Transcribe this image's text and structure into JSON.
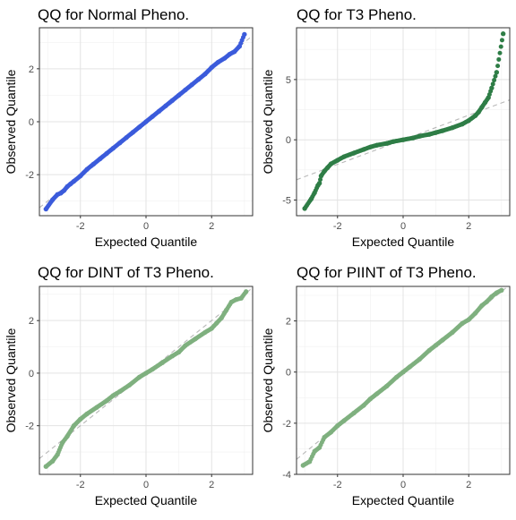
{
  "chart_data": [
    {
      "type": "scatter",
      "title": "QQ for Normal Pheno.",
      "xlabel": "Expected Quantile",
      "ylabel": "Observed Quantile",
      "color": "#3b5bdb",
      "xlim": [
        -3.25,
        3.25
      ],
      "ylim": [
        -3.55,
        3.55
      ],
      "xticks": [
        -2,
        0,
        2
      ],
      "yticks": [
        -2,
        0,
        2
      ],
      "reference_line": {
        "slope": 1.0,
        "intercept": 0.0
      },
      "points": [
        [
          -3.05,
          -3.3
        ],
        [
          -2.85,
          -2.95
        ],
        [
          -2.7,
          -2.75
        ],
        [
          -2.6,
          -2.7
        ],
        [
          -2.5,
          -2.6
        ],
        [
          -2.4,
          -2.45
        ],
        [
          -2.3,
          -2.35
        ],
        [
          -2.2,
          -2.25
        ],
        [
          -2.0,
          -2.05
        ],
        [
          -1.8,
          -1.8
        ],
        [
          -1.6,
          -1.6
        ],
        [
          -1.4,
          -1.4
        ],
        [
          -1.2,
          -1.2
        ],
        [
          -1.0,
          -1.0
        ],
        [
          -0.8,
          -0.8
        ],
        [
          -0.6,
          -0.6
        ],
        [
          -0.4,
          -0.4
        ],
        [
          -0.2,
          -0.2
        ],
        [
          0.0,
          0.0
        ],
        [
          0.2,
          0.2
        ],
        [
          0.4,
          0.4
        ],
        [
          0.6,
          0.6
        ],
        [
          0.8,
          0.8
        ],
        [
          1.0,
          1.0
        ],
        [
          1.2,
          1.2
        ],
        [
          1.4,
          1.4
        ],
        [
          1.6,
          1.6
        ],
        [
          1.8,
          1.8
        ],
        [
          2.0,
          2.05
        ],
        [
          2.2,
          2.25
        ],
        [
          2.4,
          2.4
        ],
        [
          2.55,
          2.55
        ],
        [
          2.7,
          2.65
        ],
        [
          2.85,
          2.85
        ],
        [
          3.0,
          3.3
        ]
      ]
    },
    {
      "type": "scatter",
      "title": "QQ for T3 Pheno.",
      "xlabel": "Expected Quantile",
      "ylabel": "Observed Quantile",
      "color": "#2e7d46",
      "xlim": [
        -3.25,
        3.25
      ],
      "ylim": [
        -6.3,
        9.3
      ],
      "xticks": [
        -2,
        0,
        2
      ],
      "yticks": [
        -5,
        0,
        5
      ],
      "reference_line": {
        "slope": 1.02,
        "intercept": 0.0
      },
      "points": [
        [
          -3.0,
          -5.7
        ],
        [
          -2.8,
          -4.9
        ],
        [
          -2.7,
          -4.4
        ],
        [
          -2.6,
          -3.8
        ],
        [
          -2.55,
          -3.6
        ],
        [
          -2.5,
          -3.0
        ],
        [
          -2.4,
          -2.6
        ],
        [
          -2.3,
          -2.3
        ],
        [
          -2.2,
          -2.0
        ],
        [
          -2.0,
          -1.7
        ],
        [
          -1.8,
          -1.4
        ],
        [
          -1.5,
          -1.1
        ],
        [
          -1.2,
          -0.8
        ],
        [
          -1.0,
          -0.6
        ],
        [
          -0.8,
          -0.45
        ],
        [
          -0.5,
          -0.3
        ],
        [
          -0.3,
          -0.15
        ],
        [
          0.0,
          0.0
        ],
        [
          0.3,
          0.15
        ],
        [
          0.5,
          0.3
        ],
        [
          0.8,
          0.45
        ],
        [
          1.0,
          0.6
        ],
        [
          1.2,
          0.75
        ],
        [
          1.5,
          1.0
        ],
        [
          1.8,
          1.3
        ],
        [
          2.0,
          1.6
        ],
        [
          2.2,
          2.0
        ],
        [
          2.3,
          2.3
        ],
        [
          2.4,
          2.7
        ],
        [
          2.5,
          3.1
        ],
        [
          2.6,
          3.5
        ],
        [
          2.7,
          4.3
        ],
        [
          2.85,
          5.6
        ],
        [
          3.05,
          8.8
        ]
      ]
    },
    {
      "type": "scatter",
      "title": "QQ for DINT of T3 Pheno.",
      "xlabel": "Expected Quantile",
      "ylabel": "Observed Quantile",
      "color": "#7fb07f",
      "xlim": [
        -3.25,
        3.25
      ],
      "ylim": [
        -3.85,
        3.3
      ],
      "xticks": [
        -2,
        0,
        2
      ],
      "yticks": [
        -2,
        0,
        2
      ],
      "reference_line": {
        "slope": 1.0,
        "intercept": 0.0
      },
      "points": [
        [
          -3.05,
          -3.55
        ],
        [
          -2.85,
          -3.35
        ],
        [
          -2.7,
          -3.1
        ],
        [
          -2.55,
          -2.65
        ],
        [
          -2.4,
          -2.4
        ],
        [
          -2.2,
          -2.0
        ],
        [
          -2.0,
          -1.75
        ],
        [
          -1.8,
          -1.55
        ],
        [
          -1.5,
          -1.3
        ],
        [
          -1.2,
          -1.05
        ],
        [
          -1.0,
          -0.85
        ],
        [
          -0.8,
          -0.7
        ],
        [
          -0.5,
          -0.45
        ],
        [
          -0.2,
          -0.15
        ],
        [
          0.0,
          0.0
        ],
        [
          0.2,
          0.15
        ],
        [
          0.5,
          0.4
        ],
        [
          0.8,
          0.65
        ],
        [
          1.0,
          0.8
        ],
        [
          1.2,
          1.05
        ],
        [
          1.5,
          1.3
        ],
        [
          1.8,
          1.55
        ],
        [
          2.0,
          1.7
        ],
        [
          2.15,
          1.9
        ],
        [
          2.3,
          2.1
        ],
        [
          2.45,
          2.4
        ],
        [
          2.6,
          2.7
        ],
        [
          2.75,
          2.8
        ],
        [
          2.9,
          2.85
        ],
        [
          3.05,
          3.1
        ]
      ]
    },
    {
      "type": "scatter",
      "title": "QQ for PIINT of T3 Pheno.",
      "xlabel": "Expected Quantile",
      "ylabel": "Observed Quantile",
      "color": "#7fb07f",
      "xlim": [
        -3.25,
        3.25
      ],
      "ylim": [
        -4.0,
        3.35
      ],
      "xticks": [
        -2,
        0,
        2
      ],
      "yticks": [
        -4,
        -2,
        0,
        2
      ],
      "reference_line": {
        "slope": 1.05,
        "intercept": 0.0
      },
      "points": [
        [
          -3.05,
          -3.65
        ],
        [
          -2.85,
          -3.5
        ],
        [
          -2.7,
          -3.1
        ],
        [
          -2.55,
          -2.95
        ],
        [
          -2.4,
          -2.55
        ],
        [
          -2.2,
          -2.35
        ],
        [
          -2.0,
          -2.1
        ],
        [
          -1.8,
          -1.9
        ],
        [
          -1.5,
          -1.6
        ],
        [
          -1.2,
          -1.3
        ],
        [
          -1.0,
          -1.05
        ],
        [
          -0.8,
          -0.85
        ],
        [
          -0.5,
          -0.55
        ],
        [
          -0.2,
          -0.2
        ],
        [
          0.0,
          0.0
        ],
        [
          0.2,
          0.2
        ],
        [
          0.5,
          0.5
        ],
        [
          0.8,
          0.85
        ],
        [
          1.0,
          1.05
        ],
        [
          1.2,
          1.25
        ],
        [
          1.5,
          1.55
        ],
        [
          1.8,
          1.9
        ],
        [
          2.0,
          2.05
        ],
        [
          2.2,
          2.3
        ],
        [
          2.4,
          2.6
        ],
        [
          2.55,
          2.75
        ],
        [
          2.7,
          2.95
        ],
        [
          2.85,
          3.1
        ],
        [
          3.0,
          3.2
        ]
      ]
    }
  ]
}
